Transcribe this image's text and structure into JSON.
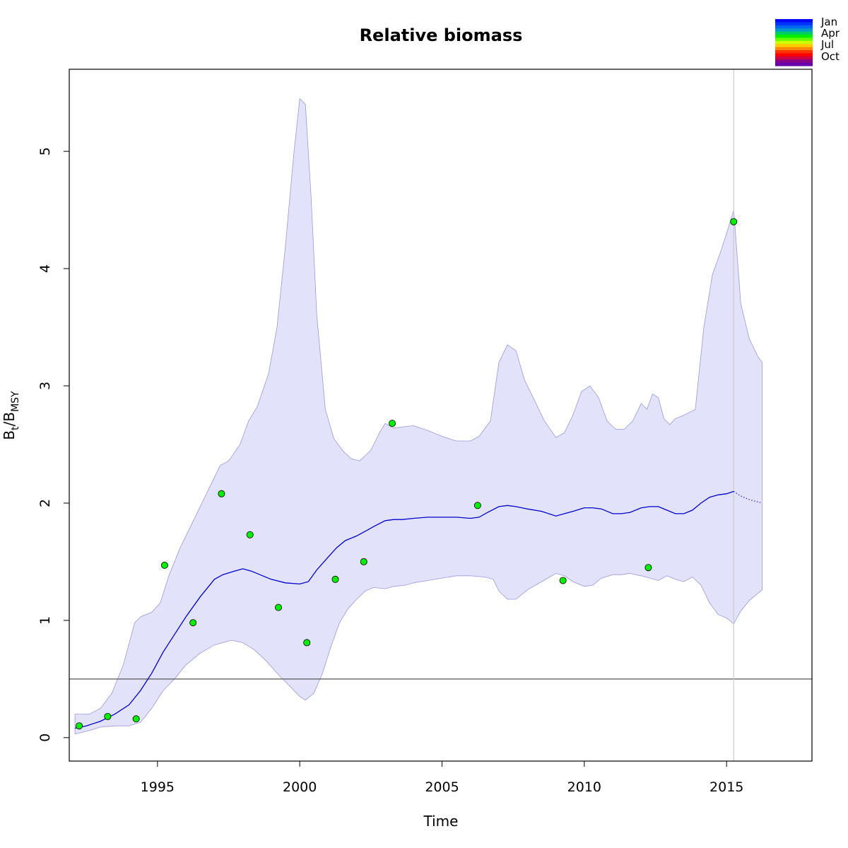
{
  "chart_data": {
    "type": "line",
    "title": "Relative biomass",
    "xlabel": "Time",
    "ylabel": {
      "main": "B",
      "sub1": "t",
      "slash": "/B",
      "sub2": "MSY"
    },
    "xlim": [
      1991.9,
      2018.0
    ],
    "ylim": [
      -0.2,
      5.7
    ],
    "xticks": [
      {
        "value": 1995,
        "label": "1995"
      },
      {
        "value": 2000,
        "label": "2000"
      },
      {
        "value": 2005,
        "label": "2005"
      },
      {
        "value": 2010,
        "label": "2010"
      },
      {
        "value": 2015,
        "label": "2015"
      }
    ],
    "yticks": [
      {
        "value": 0,
        "label": "0"
      },
      {
        "value": 1,
        "label": "1"
      },
      {
        "value": 2,
        "label": "2"
      },
      {
        "value": 3,
        "label": "3"
      },
      {
        "value": 4,
        "label": "4"
      },
      {
        "value": 5,
        "label": "5"
      }
    ],
    "reference_line_y": 0.5,
    "current_time_line_x": 2015.25,
    "colors": {
      "median_line": "#0000cc",
      "band_fill": "#e2e2fb",
      "band_stroke": "#9999dd",
      "points": "#00ee00",
      "reference_line": "#555555",
      "time_line": "#cccccc"
    },
    "median": {
      "x": [
        1992.1,
        1992.5,
        1993.0,
        1993.5,
        1994.0,
        1994.4,
        1994.8,
        1995.2,
        1995.6,
        1996.0,
        1996.5,
        1997.0,
        1997.3,
        1997.7,
        1998.0,
        1998.3,
        1998.6,
        1999.0,
        1999.5,
        2000.0,
        2000.3,
        2000.6,
        2001.0,
        2001.3,
        2001.6,
        2002.0,
        2002.3,
        2002.6,
        2003.0,
        2003.3,
        2003.6,
        2004.0,
        2004.5,
        2005.0,
        2005.5,
        2006.0,
        2006.3,
        2006.6,
        2007.0,
        2007.3,
        2007.6,
        2008.0,
        2008.5,
        2009.0,
        2009.3,
        2009.6,
        2010.0,
        2010.3,
        2010.6,
        2011.0,
        2011.3,
        2011.6,
        2012.0,
        2012.3,
        2012.6,
        2012.9,
        2013.2,
        2013.5,
        2013.8,
        2014.1,
        2014.4,
        2014.7,
        2015.0,
        2015.25
      ],
      "y": [
        0.08,
        0.1,
        0.14,
        0.2,
        0.28,
        0.4,
        0.55,
        0.73,
        0.88,
        1.03,
        1.2,
        1.35,
        1.39,
        1.42,
        1.44,
        1.42,
        1.39,
        1.35,
        1.32,
        1.31,
        1.33,
        1.43,
        1.54,
        1.62,
        1.68,
        1.72,
        1.76,
        1.8,
        1.85,
        1.86,
        1.86,
        1.87,
        1.88,
        1.88,
        1.88,
        1.87,
        1.88,
        1.92,
        1.97,
        1.98,
        1.97,
        1.95,
        1.93,
        1.89,
        1.91,
        1.93,
        1.96,
        1.96,
        1.95,
        1.91,
        1.91,
        1.92,
        1.96,
        1.97,
        1.97,
        1.94,
        1.91,
        1.91,
        1.94,
        2.0,
        2.05,
        2.07,
        2.08,
        2.1
      ]
    },
    "forecast": {
      "x": [
        2015.25,
        2015.5,
        2015.8,
        2016.1,
        2016.25
      ],
      "y": [
        2.1,
        2.06,
        2.03,
        2.01,
        2.0
      ]
    },
    "band_upper": {
      "x": [
        1992.1,
        1992.6,
        1993.0,
        1993.4,
        1993.8,
        1994.2,
        1994.4,
        1994.8,
        1995.1,
        1995.4,
        1995.8,
        1996.2,
        1996.6,
        1997.0,
        1997.2,
        1997.5,
        1997.9,
        1998.2,
        1998.5,
        1998.9,
        1999.2,
        1999.5,
        1999.8,
        2000.0,
        2000.2,
        2000.4,
        2000.6,
        2000.9,
        2001.2,
        2001.5,
        2001.8,
        2002.1,
        2002.5,
        2002.8,
        2003.0,
        2003.3,
        2003.6,
        2004.0,
        2004.5,
        2005.0,
        2005.5,
        2006.0,
        2006.3,
        2006.7,
        2007.0,
        2007.3,
        2007.6,
        2007.9,
        2008.2,
        2008.6,
        2009.0,
        2009.3,
        2009.6,
        2009.9,
        2010.2,
        2010.5,
        2010.8,
        2011.1,
        2011.4,
        2011.7,
        2012.0,
        2012.2,
        2012.4,
        2012.6,
        2012.8,
        2013.0,
        2013.2,
        2013.5,
        2013.9,
        2014.2,
        2014.5,
        2014.8,
        2015.0,
        2015.25,
        2015.5,
        2015.8,
        2016.1,
        2016.25
      ],
      "y": [
        0.2,
        0.2,
        0.25,
        0.38,
        0.62,
        0.98,
        1.03,
        1.07,
        1.15,
        1.38,
        1.62,
        1.82,
        2.02,
        2.22,
        2.32,
        2.36,
        2.5,
        2.7,
        2.82,
        3.1,
        3.5,
        4.2,
        5.0,
        5.45,
        5.4,
        4.6,
        3.6,
        2.8,
        2.55,
        2.45,
        2.38,
        2.36,
        2.45,
        2.6,
        2.68,
        2.64,
        2.65,
        2.66,
        2.62,
        2.57,
        2.53,
        2.53,
        2.57,
        2.7,
        3.2,
        3.35,
        3.3,
        3.05,
        2.9,
        2.7,
        2.56,
        2.6,
        2.75,
        2.95,
        3.0,
        2.9,
        2.7,
        2.63,
        2.63,
        2.7,
        2.85,
        2.8,
        2.93,
        2.9,
        2.72,
        2.67,
        2.72,
        2.75,
        2.8,
        3.5,
        3.95,
        4.15,
        4.3,
        4.5,
        3.7,
        3.4,
        3.25,
        3.2
      ]
    },
    "band_lower": {
      "x": [
        1992.1,
        1992.6,
        1993.0,
        1993.5,
        1994.0,
        1994.4,
        1994.8,
        1995.2,
        1995.6,
        1996.0,
        1996.5,
        1997.0,
        1997.3,
        1997.6,
        1998.0,
        1998.4,
        1998.8,
        1999.2,
        1999.6,
        2000.0,
        2000.2,
        2000.5,
        2000.8,
        2001.1,
        2001.4,
        2001.7,
        2002.0,
        2002.3,
        2002.6,
        2003.0,
        2003.3,
        2003.7,
        2004.0,
        2004.5,
        2005.0,
        2005.5,
        2006.0,
        2006.5,
        2006.8,
        2007.0,
        2007.3,
        2007.6,
        2008.0,
        2008.5,
        2009.0,
        2009.3,
        2009.6,
        2010.0,
        2010.3,
        2010.6,
        2011.0,
        2011.3,
        2011.6,
        2012.0,
        2012.3,
        2012.6,
        2012.9,
        2013.2,
        2013.5,
        2013.8,
        2014.1,
        2014.4,
        2014.7,
        2015.0,
        2015.25,
        2015.5,
        2015.8,
        2016.1,
        2016.25
      ],
      "y": [
        0.03,
        0.06,
        0.09,
        0.1,
        0.1,
        0.13,
        0.25,
        0.4,
        0.5,
        0.62,
        0.72,
        0.79,
        0.81,
        0.83,
        0.81,
        0.75,
        0.66,
        0.55,
        0.45,
        0.35,
        0.32,
        0.38,
        0.55,
        0.78,
        0.98,
        1.1,
        1.18,
        1.25,
        1.28,
        1.27,
        1.29,
        1.3,
        1.32,
        1.34,
        1.36,
        1.38,
        1.38,
        1.37,
        1.35,
        1.25,
        1.18,
        1.18,
        1.26,
        1.33,
        1.4,
        1.38,
        1.33,
        1.29,
        1.3,
        1.36,
        1.39,
        1.39,
        1.4,
        1.38,
        1.36,
        1.34,
        1.38,
        1.35,
        1.33,
        1.37,
        1.3,
        1.15,
        1.05,
        1.02,
        0.97,
        1.08,
        1.17,
        1.23,
        1.26
      ]
    },
    "points": {
      "x": [
        1992.25,
        1993.25,
        1994.25,
        1995.25,
        1996.25,
        1997.25,
        1998.25,
        1999.25,
        2000.25,
        2001.25,
        2002.25,
        2003.25,
        2006.25,
        2009.25,
        2012.25,
        2015.25
      ],
      "y": [
        0.1,
        0.18,
        0.16,
        1.47,
        0.98,
        2.08,
        1.73,
        1.11,
        0.81,
        1.35,
        1.5,
        2.68,
        1.98,
        1.34,
        1.45,
        4.4
      ]
    },
    "legend": {
      "labels": [
        "Jan",
        "Apr",
        "Jul",
        "Oct"
      ],
      "gradient_colors": [
        "#0000ff",
        "#0033ff",
        "#0066ee",
        "#0099cc",
        "#00cc66",
        "#00ee00",
        "#66ff00",
        "#ccff00",
        "#ffcc00",
        "#ff8800",
        "#ff3300",
        "#ff0000",
        "#cc0044",
        "#880088",
        "#6600aa"
      ]
    }
  }
}
